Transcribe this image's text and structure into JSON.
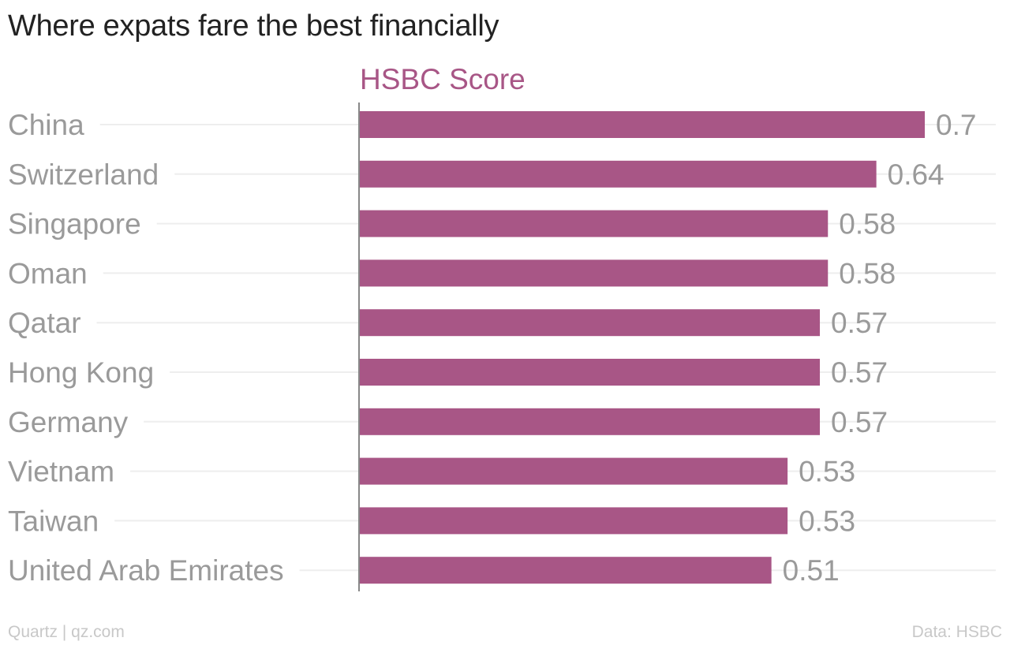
{
  "title": "Where expats fare the best financially",
  "footer": {
    "credit": "Quartz | qz.com",
    "source": "Data: HSBC"
  },
  "colors": {
    "bar": "#a85686",
    "series_label": "#a85686",
    "category_label": "#9a9a9a",
    "value_label": "#9a9a9a",
    "gridline": "#eeeeee",
    "axis": "#888888"
  },
  "chart_data": {
    "type": "bar",
    "orientation": "horizontal",
    "categories": [
      "China",
      "Switzerland",
      "Singapore",
      "Oman",
      "Qatar",
      "Hong Kong",
      "Germany",
      "Vietnam",
      "Taiwan",
      "United Arab Emirates"
    ],
    "series": [
      {
        "name": "HSBC Score",
        "values": [
          0.7,
          0.64,
          0.58,
          0.58,
          0.57,
          0.57,
          0.57,
          0.53,
          0.53,
          0.51
        ]
      }
    ],
    "value_labels": [
      "0.7",
      "0.64",
      "0.58",
      "0.58",
      "0.57",
      "0.57",
      "0.57",
      "0.53",
      "0.53",
      "0.51"
    ],
    "xlim": [
      0,
      0.7
    ],
    "grid": true,
    "legend": "top"
  }
}
